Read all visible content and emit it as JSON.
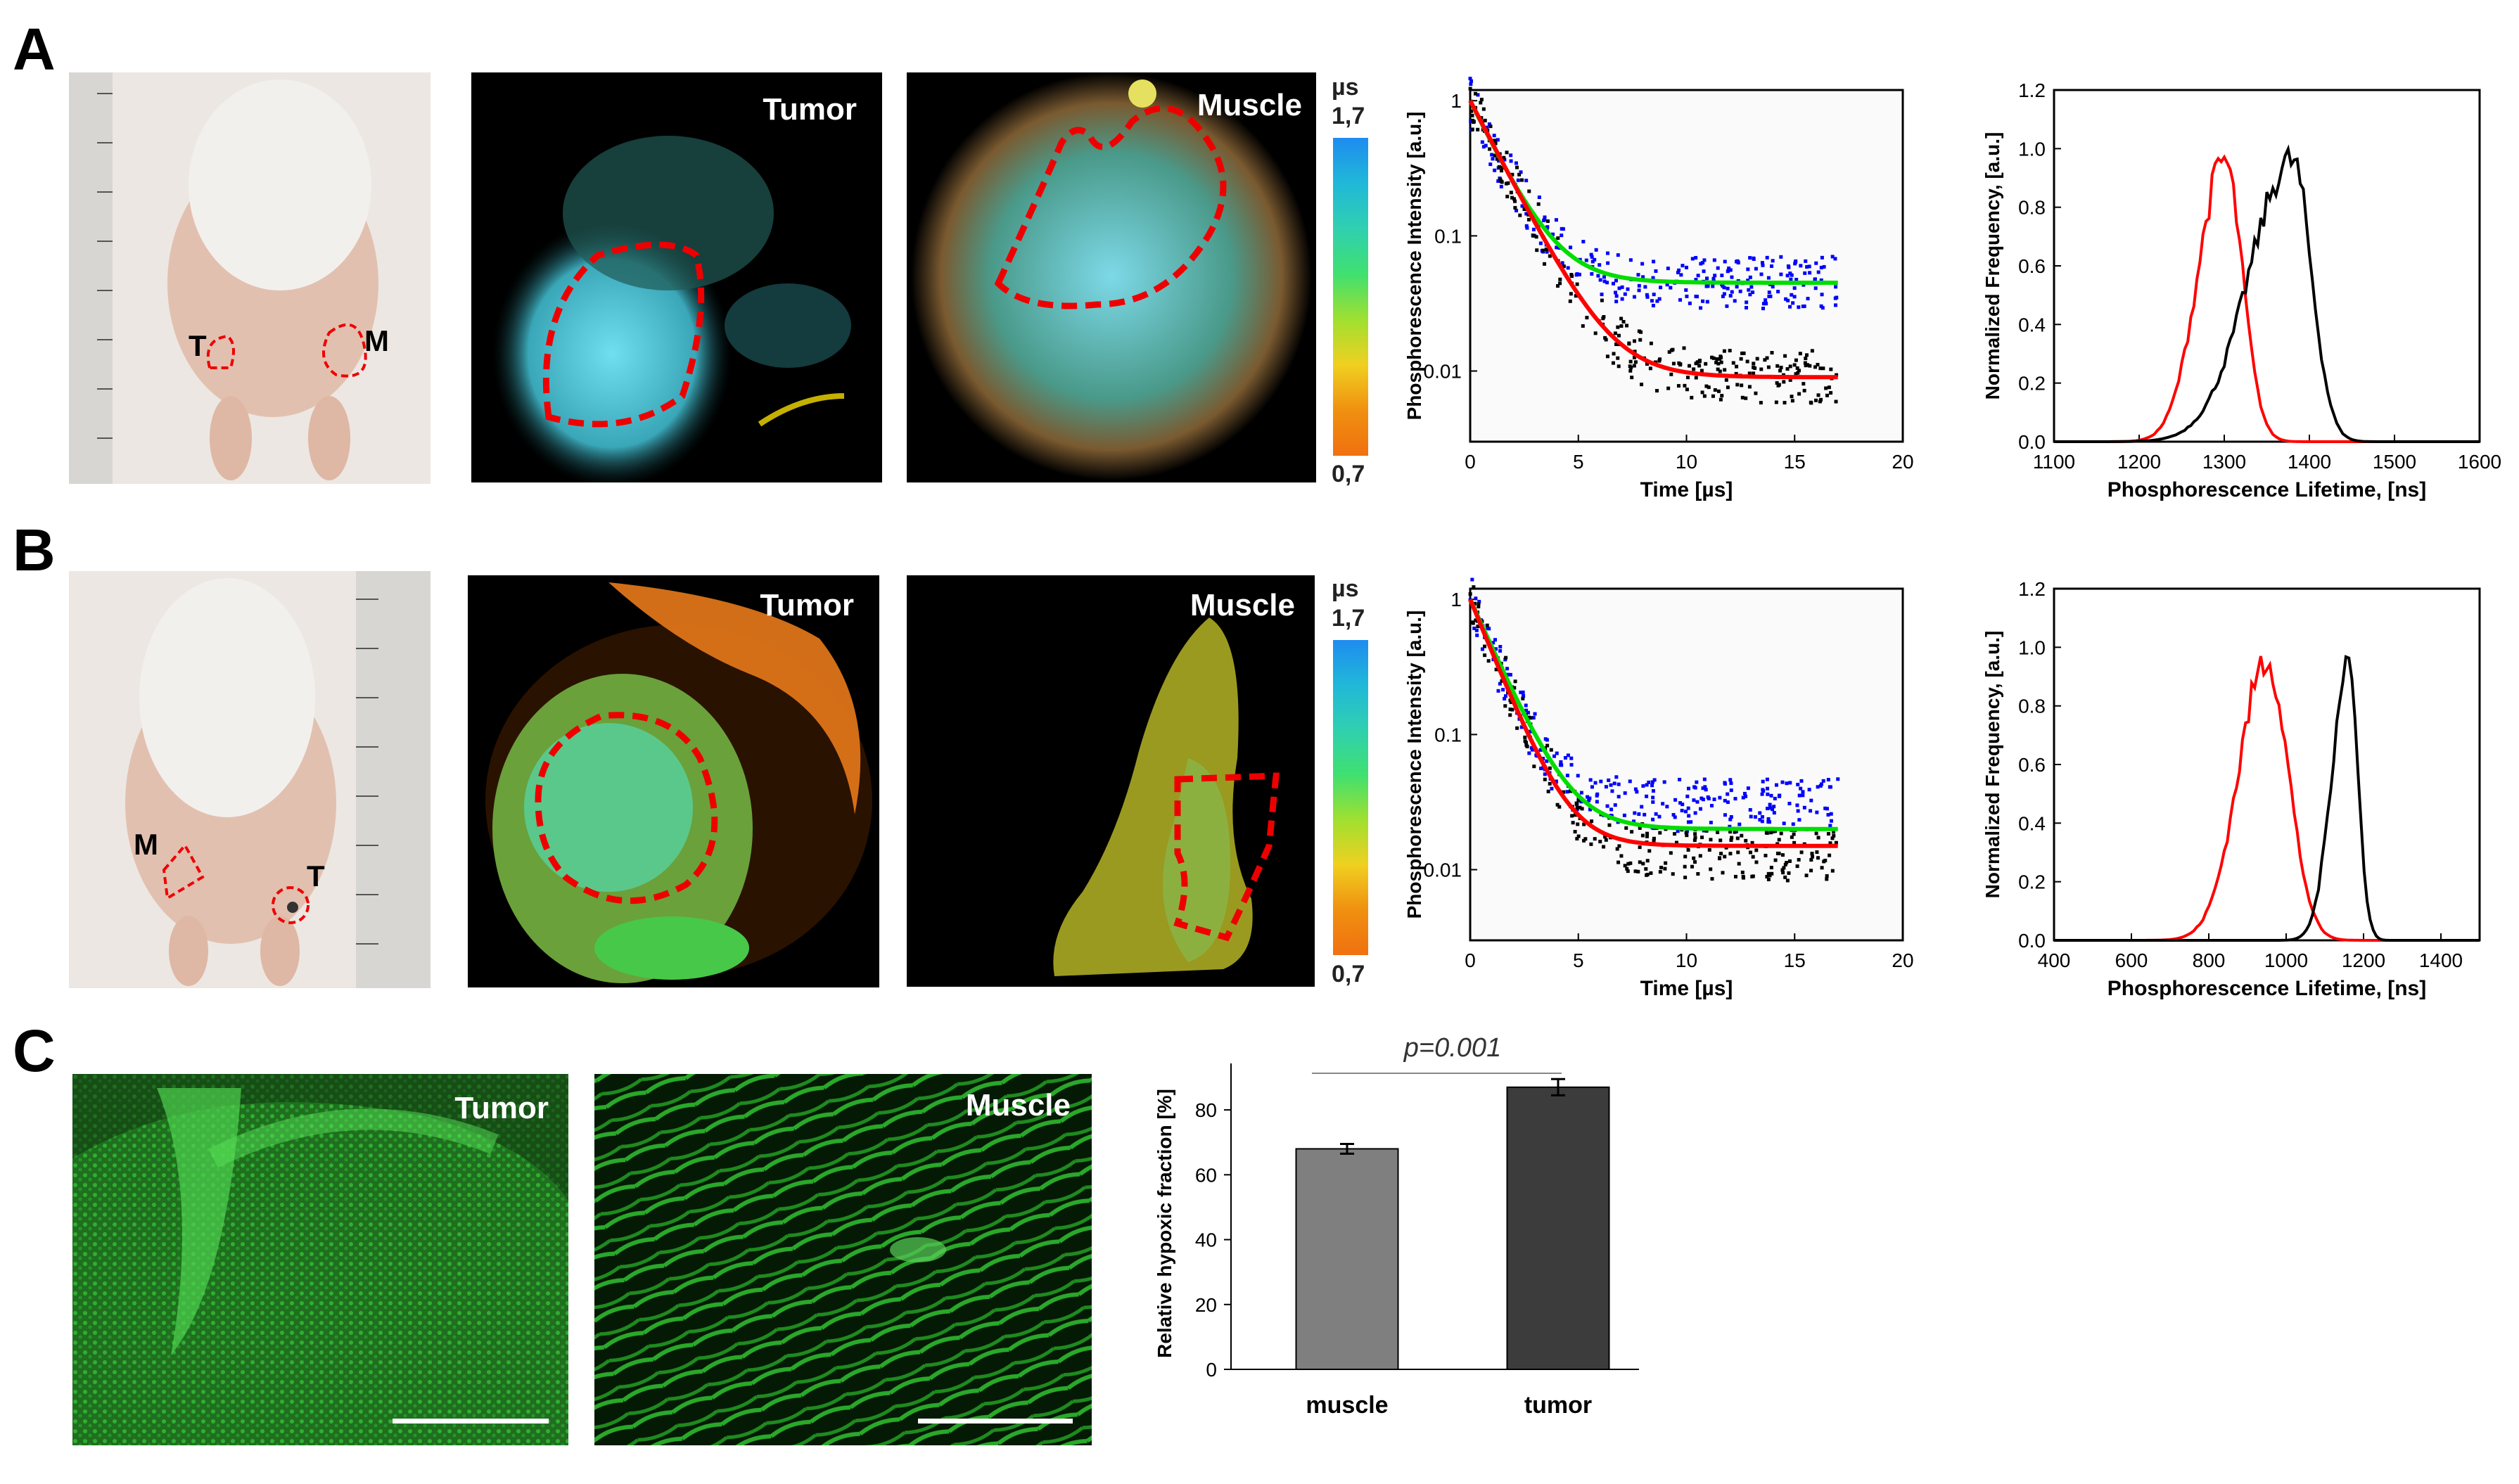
{
  "panels": {
    "A": {
      "letter": "A",
      "photo": {
        "marker_tumor": "T",
        "marker_muscle": "M"
      },
      "tumor_label": "Tumor",
      "muscle_label": "Muscle",
      "colorbar": {
        "unit": "µs",
        "max": "1,7",
        "min": "0,7"
      },
      "decay_chart": {
        "type": "scatter",
        "xlabel": "Time [µs]",
        "ylabel": "Phosphorescence Intensity [a.u.]",
        "xlim": [
          0,
          20
        ],
        "ylim": [
          0.003,
          1.2
        ],
        "yscale": "log",
        "x_ticks": [
          "0",
          "5",
          "10",
          "15",
          "20"
        ],
        "y_ticks": [
          "1",
          "0.1",
          "0.01"
        ],
        "series": [
          {
            "color": "#0000ff",
            "plateau": 0.045,
            "tau": 1.3
          },
          {
            "color": "#000000",
            "plateau": 0.009,
            "tau": 1.4
          }
        ],
        "fits": [
          {
            "color": "#00dd00",
            "plateau": 0.045,
            "tau": 1.3
          },
          {
            "color": "#ff0000",
            "plateau": 0.009,
            "tau": 1.4
          }
        ]
      },
      "hist_chart": {
        "type": "line",
        "xlabel": "Phosphorescence Lifetime,  [ns]",
        "ylabel": "Normalized Frequency, [a.u.]",
        "xlim": [
          1100,
          1600
        ],
        "ylim": [
          0,
          1.2
        ],
        "x_ticks": [
          "1100",
          "1200",
          "1300",
          "1400",
          "1500",
          "1600"
        ],
        "y_ticks": [
          "0.0",
          "0.2",
          "0.4",
          "0.6",
          "0.8",
          "1.0",
          "1.2"
        ],
        "series": [
          {
            "color": "#ff0000",
            "center": 1300,
            "width_left": 55,
            "width_right": 38
          },
          {
            "color": "#000000",
            "center": 1380,
            "width_left": 90,
            "width_right": 40
          }
        ]
      }
    },
    "B": {
      "letter": "B",
      "photo": {
        "marker_tumor": "T",
        "marker_muscle": "M"
      },
      "tumor_label": "Tumor",
      "muscle_label": "Muscle",
      "colorbar": {
        "unit": "µs",
        "max": "1,7",
        "min": "0,7"
      },
      "decay_chart": {
        "type": "scatter",
        "xlabel": "Time [µs]",
        "ylabel": "Phosphorescence Intensity [a.u.]",
        "xlim": [
          0,
          20
        ],
        "ylim": [
          0.003,
          1.2
        ],
        "yscale": "log",
        "x_ticks": [
          "0",
          "5",
          "10",
          "15",
          "20"
        ],
        "y_ticks": [
          "1",
          "0.1",
          "0.01"
        ],
        "series": [
          {
            "color": "#0000ff",
            "plateau": 0.03,
            "tau": 1.1
          },
          {
            "color": "#000000",
            "plateau": 0.013,
            "tau": 1.15
          }
        ],
        "fits": [
          {
            "color": "#00dd00",
            "plateau": 0.02,
            "tau": 1.2
          },
          {
            "color": "#ff0000",
            "plateau": 0.015,
            "tau": 1.1
          }
        ]
      },
      "hist_chart": {
        "type": "line",
        "xlabel": "Phosphorescence Lifetime, [ns]",
        "ylabel": "Normalized Frequency, [a.u.]",
        "xlim": [
          400,
          1500
        ],
        "ylim": [
          0,
          1.2
        ],
        "x_ticks": [
          "400",
          "600",
          "800",
          "1000",
          "1200",
          "1400"
        ],
        "y_ticks": [
          "0.0",
          "0.2",
          "0.4",
          "0.6",
          "0.8",
          "1.0",
          "1.2"
        ],
        "series": [
          {
            "color": "#ff0000",
            "center": 950,
            "width_left": 130,
            "width_right": 100
          },
          {
            "color": "#000000",
            "center": 1160,
            "width_left": 75,
            "width_right": 45
          }
        ]
      }
    },
    "C": {
      "letter": "C",
      "tumor_label": "Tumor",
      "muscle_label": "Muscle",
      "bar_chart": {
        "type": "bar",
        "categories": [
          "muscle",
          "tumor"
        ],
        "values": [
          68,
          87
        ],
        "errors": [
          1.5,
          2.5
        ],
        "colors": [
          "#7f7f7f",
          "#3c3c3c"
        ],
        "ylabel": "Relative hypoxic fraction [%]",
        "ylim": [
          0,
          90
        ],
        "y_ticks": [
          "0",
          "20",
          "40",
          "60",
          "80"
        ],
        "annotation": "p=0.001"
      }
    }
  }
}
